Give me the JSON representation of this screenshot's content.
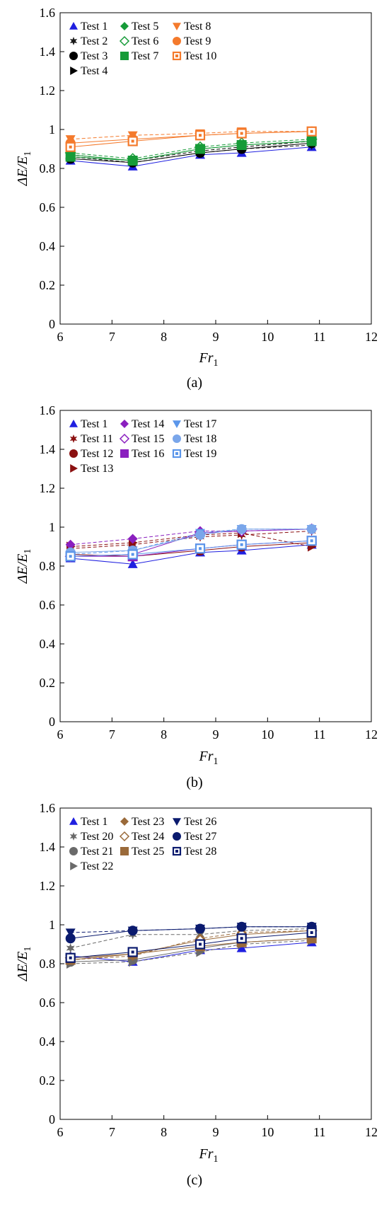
{
  "chart_data": [
    {
      "type": "line",
      "panel_label": "(a)",
      "xlabel": "Fr",
      "xlabel_sub": "1",
      "ylabel": "ΔE/E",
      "ylabel_sub": "1",
      "xlim": [
        6,
        12
      ],
      "ylim": [
        0,
        1.6
      ],
      "xticks": [
        "6",
        "7",
        "8",
        "9",
        "10",
        "11",
        "12"
      ],
      "yticks": [
        "0",
        "0.2",
        "0.4",
        "0.6",
        "0.8",
        "1",
        "1.2",
        "1.4",
        "1.6"
      ],
      "grid": false,
      "legend_position": "top-left",
      "series": [
        {
          "name": "Test 1",
          "marker": "triangle-up",
          "color": "#1f1fe0",
          "dash": false,
          "x": [
            6.2,
            7.4,
            8.7,
            9.5,
            10.85
          ],
          "y": [
            0.84,
            0.81,
            0.87,
            0.88,
            0.91
          ]
        },
        {
          "name": "Test 2",
          "marker": "star",
          "color": "#1a1a1a",
          "dash": true,
          "x": [
            6.2,
            7.4,
            8.7,
            9.5,
            10.85
          ],
          "y": [
            0.86,
            0.83,
            0.88,
            0.9,
            0.92
          ]
        },
        {
          "name": "Test 3",
          "marker": "circle",
          "color": "#000000",
          "dash": false,
          "x": [
            6.2,
            7.4,
            8.7,
            9.5,
            10.85
          ],
          "y": [
            0.85,
            0.83,
            0.88,
            0.9,
            0.93
          ]
        },
        {
          "name": "Test 4",
          "marker": "triangle-right",
          "color": "#000000",
          "dash": true,
          "x": [
            6.2,
            7.4,
            8.7,
            9.5,
            10.85
          ],
          "y": [
            0.87,
            0.84,
            0.89,
            0.91,
            0.94
          ]
        },
        {
          "name": "Test 5",
          "marker": "diamond",
          "color": "#169b38",
          "dash": false,
          "x": [
            6.2,
            7.4,
            8.7,
            9.5,
            10.85
          ],
          "y": [
            0.87,
            0.84,
            0.9,
            0.92,
            0.94
          ]
        },
        {
          "name": "Test 6",
          "marker": "diamond-open",
          "color": "#169b38",
          "dash": true,
          "x": [
            6.2,
            7.4,
            8.7,
            9.5,
            10.85
          ],
          "y": [
            0.88,
            0.85,
            0.91,
            0.93,
            0.95
          ]
        },
        {
          "name": "Test 7",
          "marker": "square",
          "color": "#169b38",
          "dash": false,
          "x": [
            6.2,
            7.4,
            8.7,
            9.5,
            10.85
          ],
          "y": [
            0.86,
            0.84,
            0.9,
            0.92,
            0.94
          ]
        },
        {
          "name": "Test 8",
          "marker": "triangle-down",
          "color": "#f47a2c",
          "dash": true,
          "x": [
            6.2,
            7.4,
            8.7,
            9.5,
            10.85
          ],
          "y": [
            0.95,
            0.97,
            0.98,
            0.99,
            0.99
          ]
        },
        {
          "name": "Test 9",
          "marker": "circle",
          "color": "#f47a2c",
          "dash": false,
          "x": [
            6.2,
            7.4,
            8.7,
            9.5,
            10.85
          ],
          "y": [
            0.93,
            0.95,
            0.97,
            0.98,
            0.99
          ]
        },
        {
          "name": "Test 10",
          "marker": "square-open",
          "color": "#f47a2c",
          "dash": false,
          "x": [
            6.2,
            7.4,
            8.7,
            9.5,
            10.85
          ],
          "y": [
            0.91,
            0.94,
            0.97,
            0.98,
            0.99
          ]
        }
      ]
    },
    {
      "type": "line",
      "panel_label": "(b)",
      "xlabel": "Fr",
      "xlabel_sub": "1",
      "ylabel": "ΔE/E",
      "ylabel_sub": "1",
      "xlim": [
        6,
        12
      ],
      "ylim": [
        0,
        1.6
      ],
      "xticks": [
        "6",
        "7",
        "8",
        "9",
        "10",
        "11",
        "12"
      ],
      "yticks": [
        "0",
        "0.2",
        "0.4",
        "0.6",
        "0.8",
        "1",
        "1.2",
        "1.4",
        "1.6"
      ],
      "grid": false,
      "legend_position": "top-left",
      "series": [
        {
          "name": "Test 1",
          "marker": "triangle-up",
          "color": "#1f1fe0",
          "dash": false,
          "x": [
            6.2,
            7.4,
            8.7,
            9.5,
            10.85
          ],
          "y": [
            0.84,
            0.81,
            0.87,
            0.88,
            0.91
          ]
        },
        {
          "name": "Test 11",
          "marker": "star",
          "color": "#8b1010",
          "dash": true,
          "x": [
            6.2,
            7.4,
            8.7,
            9.5,
            10.85
          ],
          "y": [
            0.89,
            0.91,
            0.95,
            0.96,
            0.98
          ]
        },
        {
          "name": "Test 12",
          "marker": "circle",
          "color": "#8b1010",
          "dash": false,
          "x": [
            6.2,
            7.4,
            8.7,
            9.5,
            10.85
          ],
          "y": [
            0.86,
            0.85,
            0.88,
            0.9,
            0.92
          ]
        },
        {
          "name": "Test 13",
          "marker": "triangle-right",
          "color": "#8b1010",
          "dash": true,
          "x": [
            6.2,
            7.4,
            8.7,
            9.5,
            10.85
          ],
          "y": [
            0.9,
            0.92,
            0.96,
            0.97,
            0.9
          ]
        },
        {
          "name": "Test 14",
          "marker": "diamond",
          "color": "#8a1fbf",
          "dash": true,
          "x": [
            6.2,
            7.4,
            8.7,
            9.5,
            10.85
          ],
          "y": [
            0.91,
            0.94,
            0.98,
            0.98,
            0.99
          ]
        },
        {
          "name": "Test 15",
          "marker": "diamond-open",
          "color": "#8a1fbf",
          "dash": false,
          "x": [
            6.2,
            7.4,
            8.7,
            9.5,
            10.85
          ],
          "y": [
            0.85,
            0.86,
            0.97,
            0.98,
            0.99
          ]
        },
        {
          "name": "Test 16",
          "marker": "square",
          "color": "#8a1fbf",
          "dash": false,
          "x": [
            6.2,
            7.4,
            8.7,
            9.5,
            10.85
          ],
          "y": [
            0.85,
            0.85,
            0.89,
            0.91,
            0.93
          ]
        },
        {
          "name": "Test 17",
          "marker": "triangle-down",
          "color": "#5b96ea",
          "dash": true,
          "x": [
            6.2,
            7.4,
            8.7,
            9.5,
            10.85
          ],
          "y": [
            0.86,
            0.88,
            0.97,
            0.99,
            0.99
          ]
        },
        {
          "name": "Test 18",
          "marker": "circle",
          "color": "#7aa6ea",
          "dash": false,
          "x": [
            6.2,
            7.4,
            8.7,
            9.5,
            10.85
          ],
          "y": [
            0.87,
            0.88,
            0.96,
            0.99,
            0.99
          ]
        },
        {
          "name": "Test 19",
          "marker": "square-open",
          "color": "#5b96ea",
          "dash": false,
          "x": [
            6.2,
            7.4,
            8.7,
            9.5,
            10.85
          ],
          "y": [
            0.85,
            0.86,
            0.89,
            0.91,
            0.93
          ]
        }
      ]
    },
    {
      "type": "line",
      "panel_label": "(c)",
      "xlabel": "Fr",
      "xlabel_sub": "1",
      "ylabel": "ΔE/E",
      "ylabel_sub": "1",
      "xlim": [
        6,
        12
      ],
      "ylim": [
        0,
        1.6
      ],
      "xticks": [
        "6",
        "7",
        "8",
        "9",
        "10",
        "11",
        "12"
      ],
      "yticks": [
        "0",
        "0.2",
        "0.4",
        "0.6",
        "0.8",
        "1",
        "1.2",
        "1.4",
        "1.6"
      ],
      "grid": false,
      "legend_position": "top-left",
      "series": [
        {
          "name": "Test 1",
          "marker": "triangle-up",
          "color": "#1f1fe0",
          "dash": false,
          "x": [
            6.2,
            7.4,
            8.7,
            9.5,
            10.85
          ],
          "y": [
            0.84,
            0.81,
            0.87,
            0.88,
            0.91
          ]
        },
        {
          "name": "Test 20",
          "marker": "star",
          "color": "#6a6a6a",
          "dash": true,
          "x": [
            6.2,
            7.4,
            8.7,
            9.5,
            10.85
          ],
          "y": [
            0.88,
            0.95,
            0.95,
            0.97,
            0.98
          ]
        },
        {
          "name": "Test 21",
          "marker": "circle",
          "color": "#6a6a6a",
          "dash": false,
          "x": [
            6.2,
            7.4,
            8.7,
            9.5,
            10.85
          ],
          "y": [
            0.81,
            0.82,
            0.88,
            0.91,
            0.93
          ]
        },
        {
          "name": "Test 22",
          "marker": "triangle-right",
          "color": "#6a6a6a",
          "dash": true,
          "x": [
            6.2,
            7.4,
            8.7,
            9.5,
            10.85
          ],
          "y": [
            0.8,
            0.81,
            0.86,
            0.9,
            0.92
          ]
        },
        {
          "name": "Test 23",
          "marker": "diamond",
          "color": "#9a6a3a",
          "dash": true,
          "x": [
            6.2,
            7.4,
            8.7,
            9.5,
            10.85
          ],
          "y": [
            0.82,
            0.84,
            0.93,
            0.96,
            0.97
          ]
        },
        {
          "name": "Test 24",
          "marker": "diamond-open",
          "color": "#9a6a3a",
          "dash": false,
          "x": [
            6.2,
            7.4,
            8.7,
            9.5,
            10.85
          ],
          "y": [
            0.83,
            0.85,
            0.92,
            0.95,
            0.97
          ]
        },
        {
          "name": "Test 25",
          "marker": "square",
          "color": "#9a6a3a",
          "dash": false,
          "x": [
            6.2,
            7.4,
            8.7,
            9.5,
            10.85
          ],
          "y": [
            0.82,
            0.85,
            0.89,
            0.91,
            0.93
          ]
        },
        {
          "name": "Test 26",
          "marker": "triangle-down",
          "color": "#0a1a6e",
          "dash": true,
          "x": [
            6.2,
            7.4,
            8.7,
            9.5,
            10.85
          ],
          "y": [
            0.96,
            0.97,
            0.98,
            0.99,
            0.99
          ]
        },
        {
          "name": "Test 27",
          "marker": "circle",
          "color": "#0a1a6e",
          "dash": false,
          "x": [
            6.2,
            7.4,
            8.7,
            9.5,
            10.85
          ],
          "y": [
            0.93,
            0.97,
            0.98,
            0.99,
            0.99
          ]
        },
        {
          "name": "Test 28",
          "marker": "square-open",
          "color": "#0a1a6e",
          "dash": false,
          "x": [
            6.2,
            7.4,
            8.7,
            9.5,
            10.85
          ],
          "y": [
            0.83,
            0.86,
            0.9,
            0.93,
            0.96
          ]
        }
      ]
    }
  ]
}
